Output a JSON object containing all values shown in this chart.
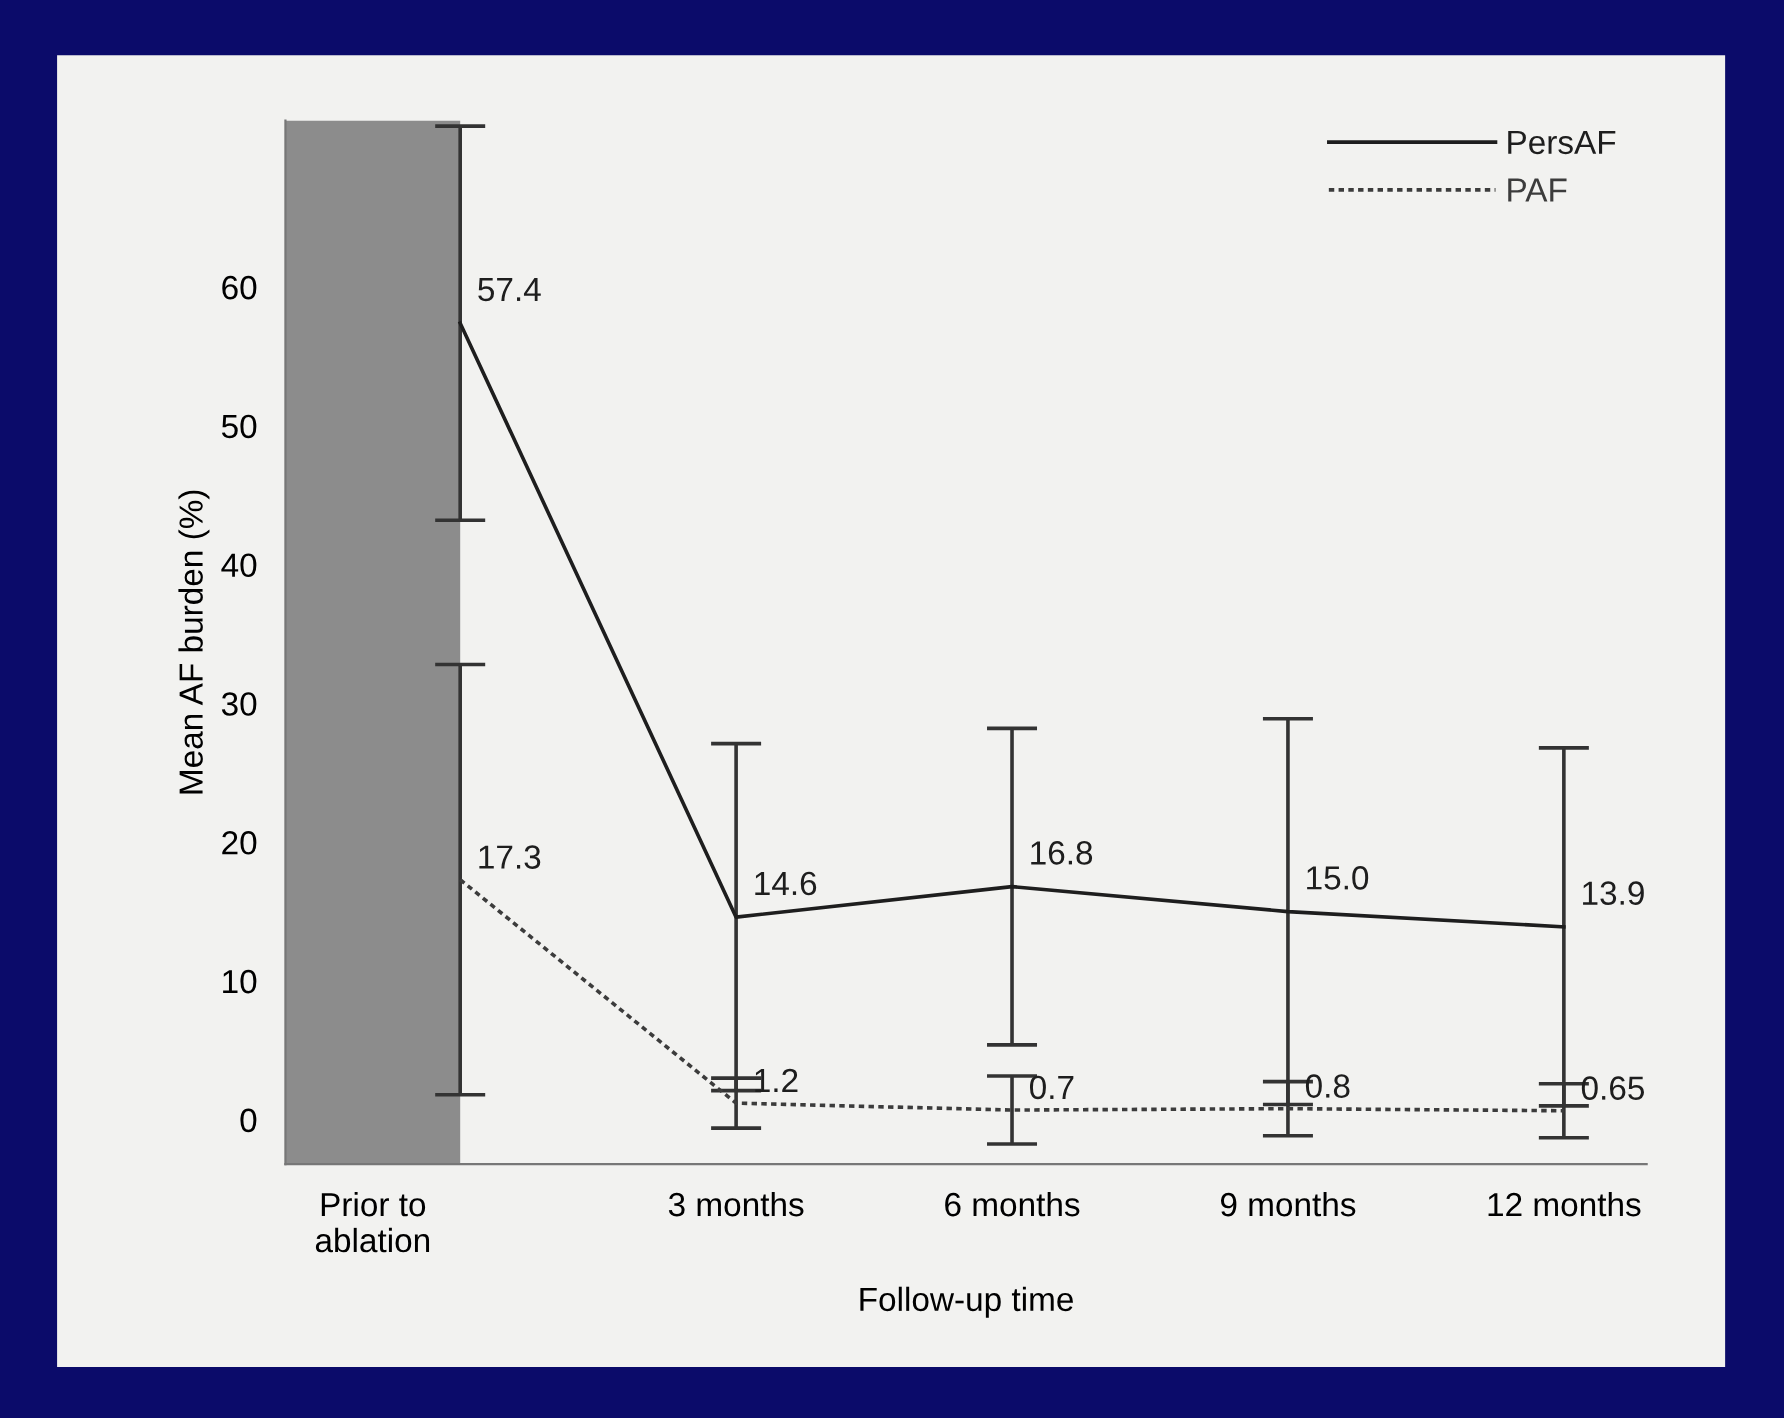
{
  "chart_data": {
    "type": "line",
    "xlabel": "Follow-up time",
    "ylabel": "Mean AF burden (%)",
    "x": [
      0,
      3,
      6,
      9,
      12
    ],
    "series": [
      {
        "name": "PersAF",
        "color": "#1e1e1e",
        "line_style": "solid",
        "values": [
          57.4,
          14.6,
          16.8,
          15.0,
          13.9
        ],
        "value_labels": [
          "57.4",
          "14.6",
          "16.8",
          "15.0",
          "13.9"
        ],
        "errors": [
          14.2,
          12.5,
          11.4,
          13.9,
          12.9
        ]
      },
      {
        "name": "PAF",
        "color": "#3c3c3c",
        "line_style": "dotted",
        "values": [
          17.3,
          1.2,
          0.7,
          0.8,
          0.65
        ],
        "value_labels": [
          "17.3",
          "1.2",
          "0.7",
          "0.8",
          "0.65"
        ],
        "errors": [
          15.5,
          1.8,
          2.45,
          1.95,
          1.95
        ]
      }
    ],
    "xlim": [
      -1.9,
      12.9
    ],
    "ylim": [
      -3.2,
      72
    ],
    "xticks": [
      {
        "value": -0.95,
        "label": "Prior to\nablation"
      },
      {
        "value": 3,
        "label": "3 months"
      },
      {
        "value": 6,
        "label": "6 months"
      },
      {
        "value": 9,
        "label": "9 months"
      },
      {
        "value": 12,
        "label": "12 months"
      }
    ],
    "yticks": [
      0,
      10,
      20,
      30,
      40,
      50,
      60
    ],
    "bands": [
      {
        "axis": "x",
        "from": -1.9,
        "to": 0,
        "color": "#8c8c8c"
      }
    ],
    "grid": false,
    "legend": "top right",
    "marker": "none"
  }
}
